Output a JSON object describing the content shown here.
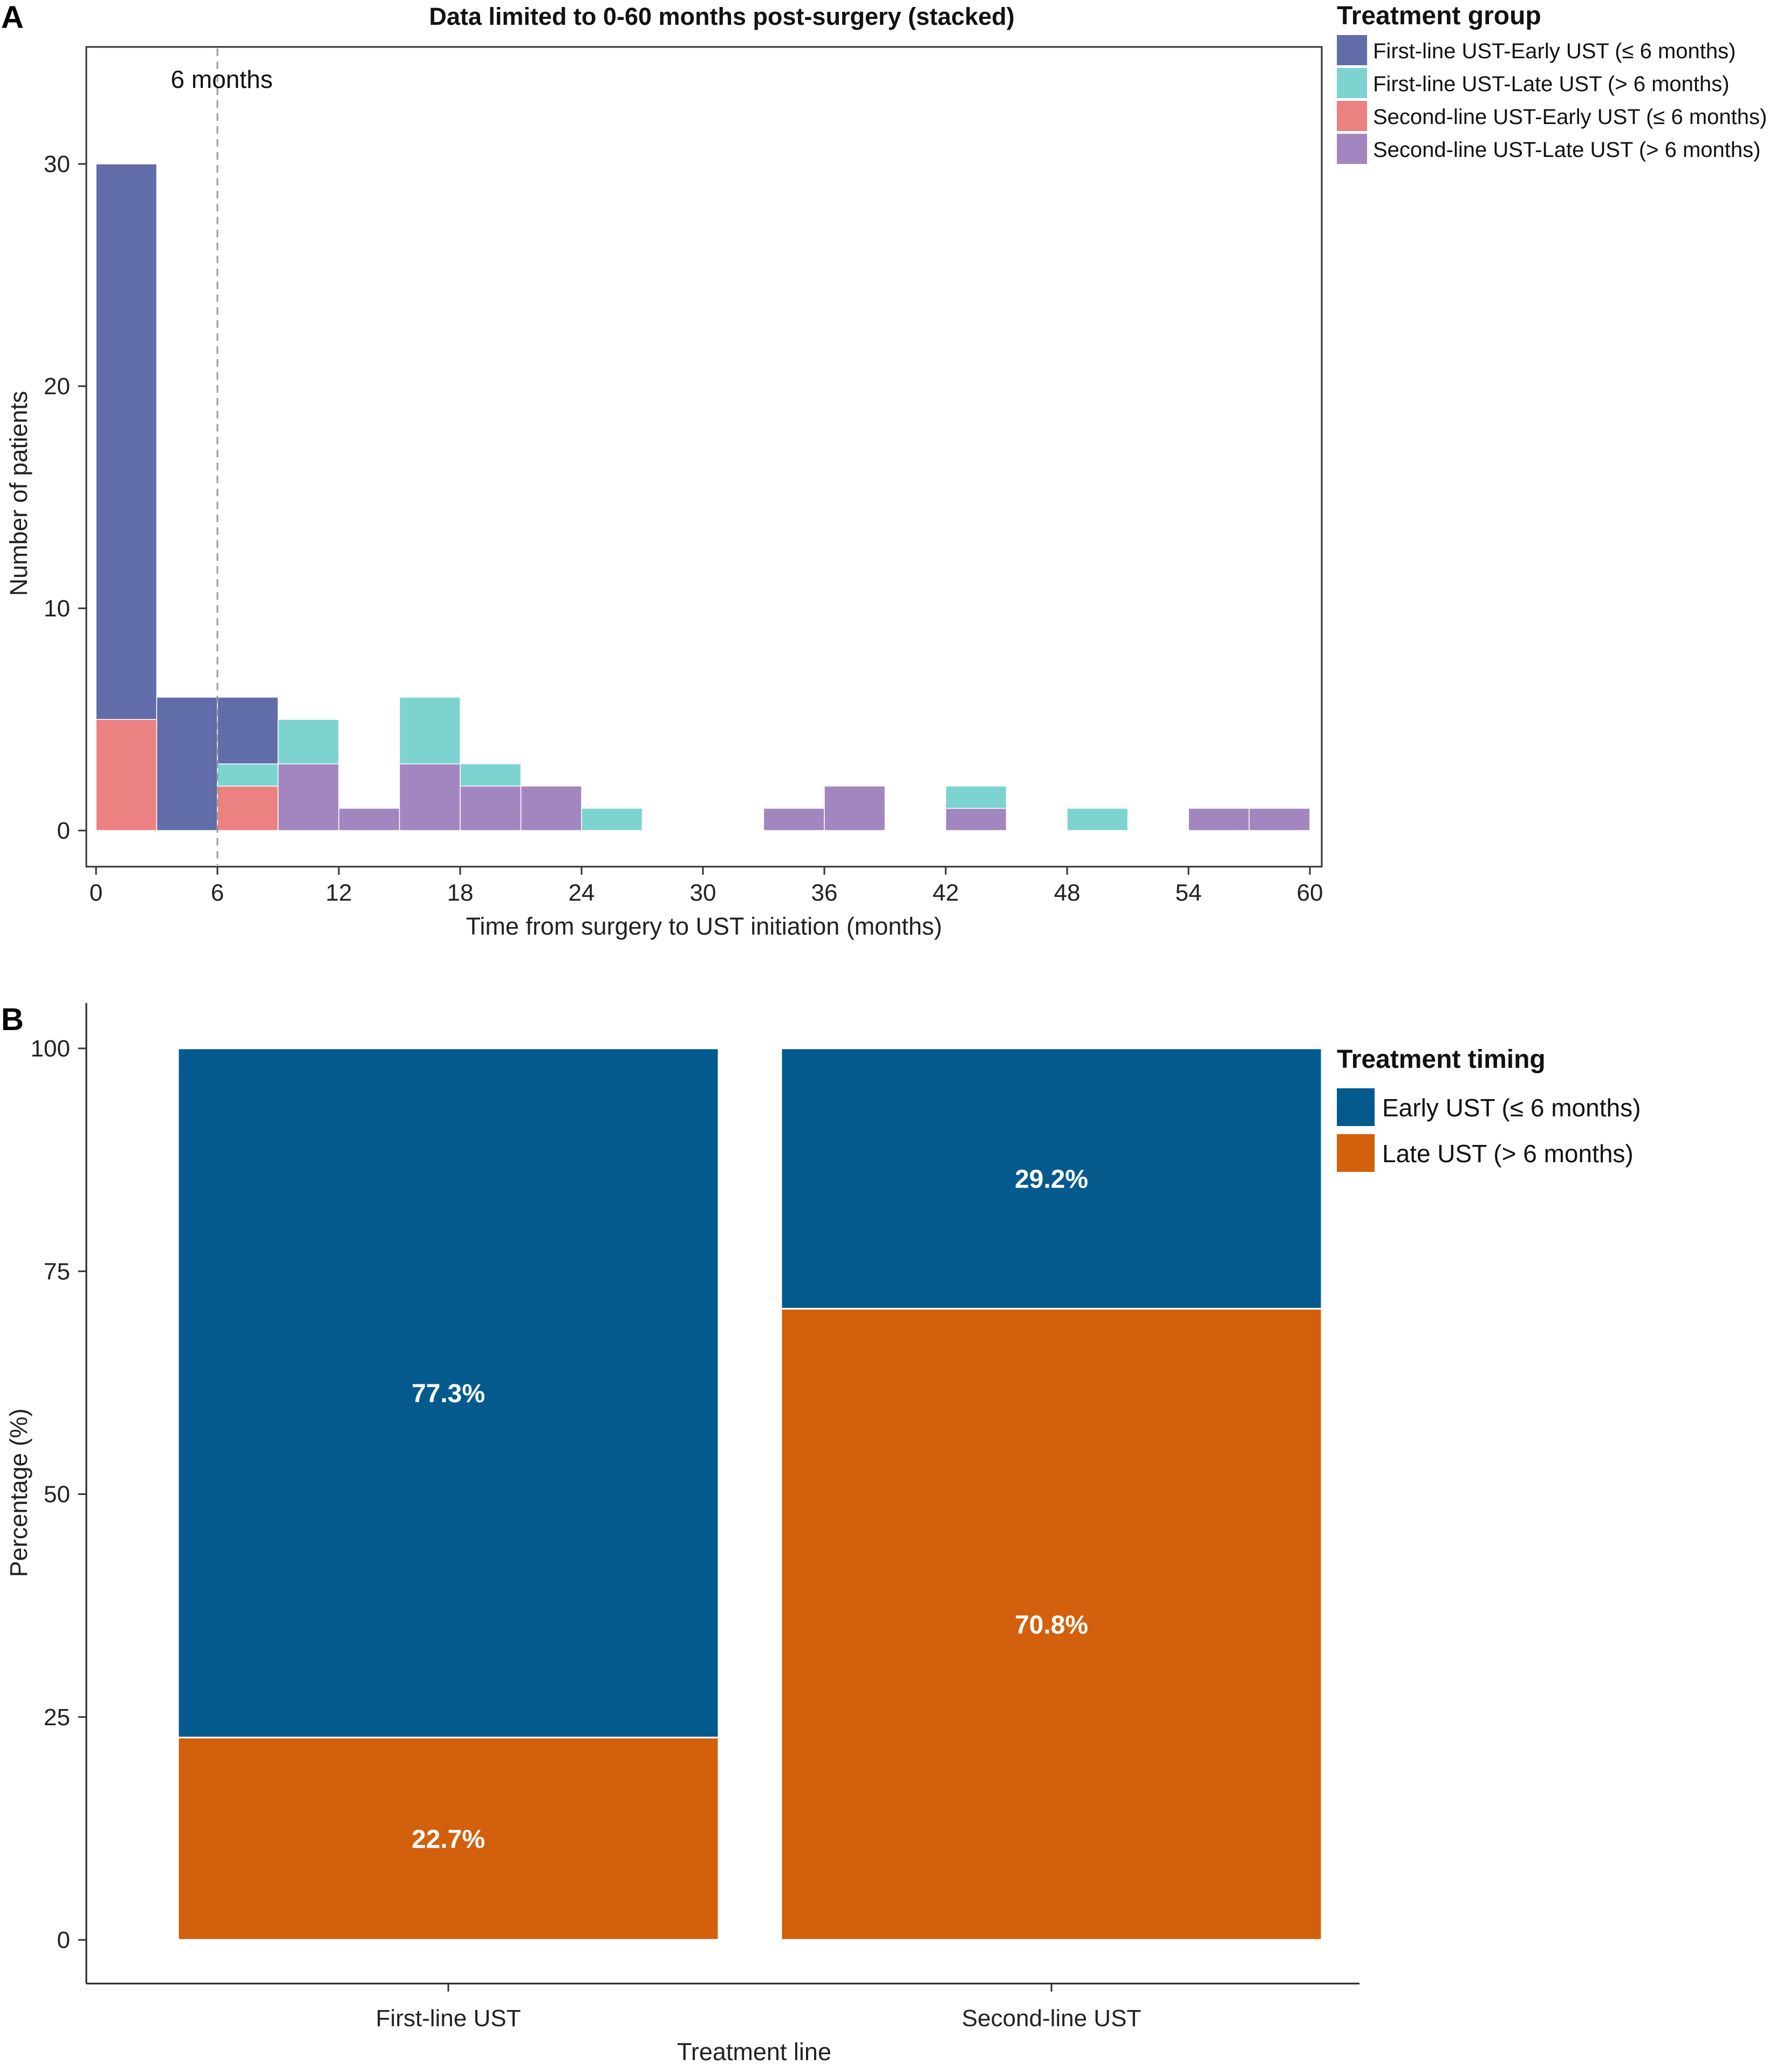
{
  "panel_a": {
    "letter": "A",
    "chart_data": {
      "type": "bar",
      "stacked": true,
      "title": "Data limited to 0-60 months post-surgery (stacked)",
      "xlabel": "Time from surgery to UST initiation (months)",
      "ylabel": "Number of patients",
      "xlim": [
        0,
        60
      ],
      "ylim": [
        0,
        35
      ],
      "x_ticks": [
        "0",
        "6",
        "12",
        "18",
        "24",
        "30",
        "36",
        "42",
        "48",
        "54",
        "60"
      ],
      "y_ticks": [
        "0",
        "10",
        "20",
        "30"
      ],
      "bin_width": 3,
      "bin_starts": [
        0,
        3,
        6,
        9,
        12,
        15,
        18,
        21,
        24,
        27,
        30,
        33,
        36,
        39,
        42,
        45,
        48,
        51,
        54,
        57
      ],
      "stack_order": [
        "Second-line UST-Early UST (≤ 6 months)",
        "Second-line UST-Late UST (> 6 months)",
        "First-line UST-Late UST (> 6 months)",
        "First-line UST-Early UST (≤ 6 months)"
      ],
      "series": [
        {
          "name": "First-line UST-Early UST (≤ 6 months)",
          "color": "#616DA8",
          "values": [
            25,
            6,
            3,
            0,
            0,
            0,
            0,
            0,
            0,
            0,
            0,
            0,
            0,
            0,
            0,
            0,
            0,
            0,
            0,
            0
          ]
        },
        {
          "name": "First-line UST-Late UST (> 6 months)",
          "color": "#7DD3D0",
          "values": [
            0,
            0,
            1,
            2,
            0,
            3,
            1,
            0,
            1,
            0,
            0,
            0,
            0,
            0,
            1,
            0,
            1,
            0,
            0,
            0
          ]
        },
        {
          "name": "Second-line UST-Early UST (≤ 6 months)",
          "color": "#EC8181",
          "values": [
            5,
            0,
            2,
            0,
            0,
            0,
            0,
            0,
            0,
            0,
            0,
            0,
            0,
            0,
            0,
            0,
            0,
            0,
            0,
            0
          ]
        },
        {
          "name": "Second-line UST-Late UST (> 6 months)",
          "color": "#A286C0",
          "values": [
            0,
            0,
            0,
            3,
            1,
            3,
            2,
            2,
            0,
            0,
            0,
            1,
            2,
            0,
            1,
            0,
            0,
            0,
            1,
            1
          ]
        }
      ],
      "reference_line": {
        "x": 6,
        "label": "6 months",
        "color": "#9a9a9a"
      },
      "legend": {
        "title": "Treatment group",
        "placement": "right"
      },
      "grid": false
    }
  },
  "panel_b": {
    "letter": "B",
    "chart_data": {
      "type": "bar",
      "stacked": true,
      "title": "",
      "xlabel": "Treatment line",
      "ylabel": "Percentage (%)",
      "ylim": [
        0,
        100
      ],
      "y_ticks": [
        "0",
        "25",
        "50",
        "75",
        "100"
      ],
      "categories": [
        "First-line UST",
        "Second-line UST"
      ],
      "series": [
        {
          "name": "Early UST (≤ 6 months)",
          "color": "#045A8D",
          "values": [
            77.3,
            29.2
          ],
          "labels": [
            "77.3%",
            "29.2%"
          ]
        },
        {
          "name": "Late UST (> 6 months)",
          "color": "#D2600C",
          "values": [
            22.7,
            70.8
          ],
          "labels": [
            "22.7%",
            "70.8%"
          ]
        }
      ],
      "stack_order": [
        "Late UST (> 6 months)",
        "Early UST (≤ 6 months)"
      ],
      "legend": {
        "title": "Treatment timing",
        "placement": "right"
      },
      "grid": false
    }
  }
}
